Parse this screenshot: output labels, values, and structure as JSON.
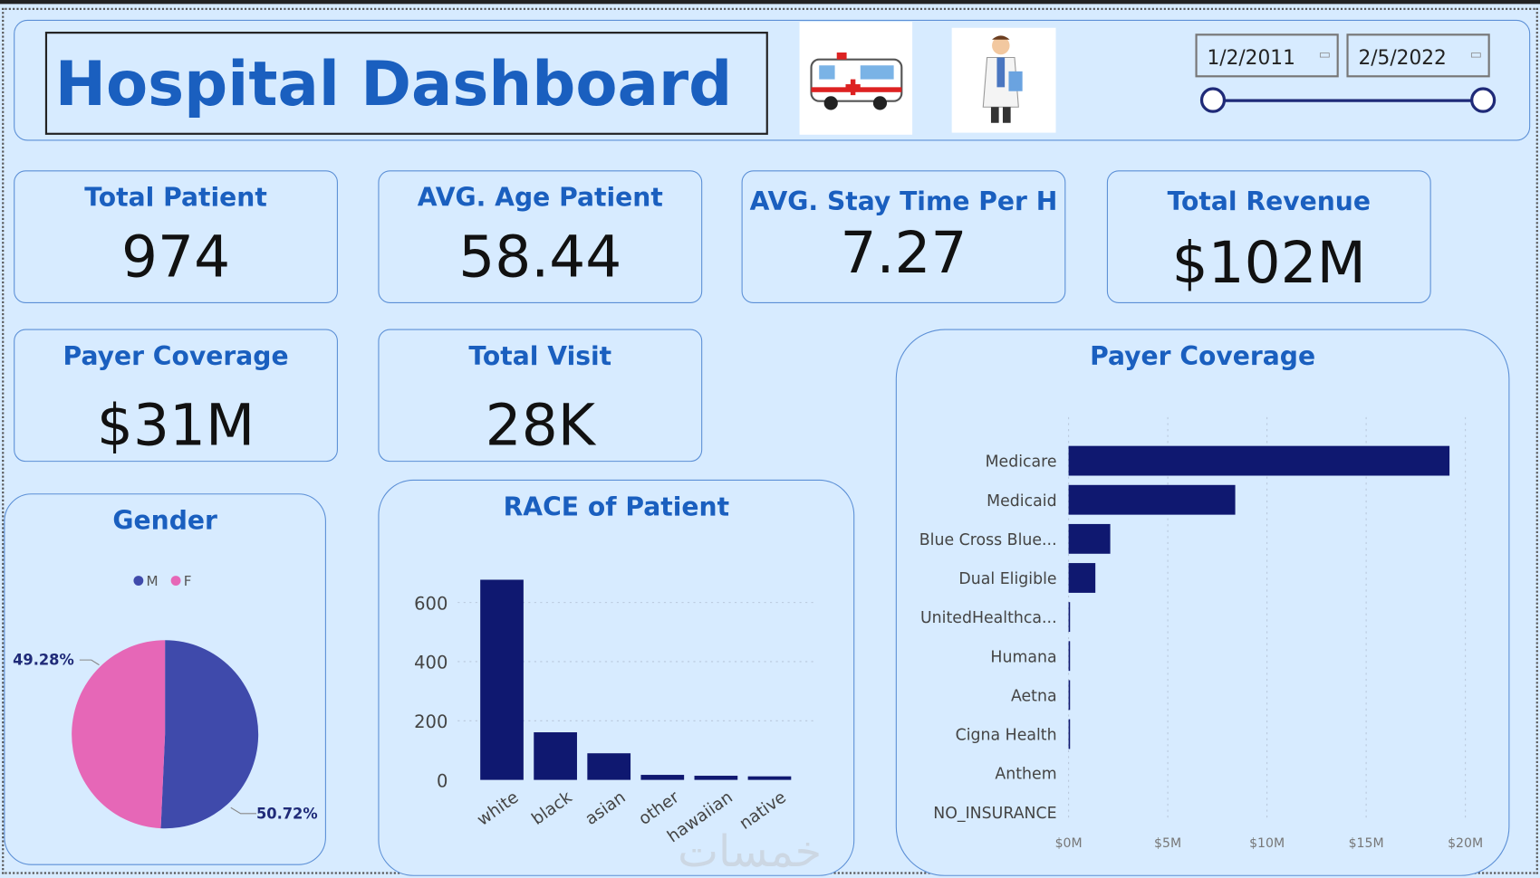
{
  "header": {
    "title": "Hospital Dashboard",
    "ambulance_icon": "ambulance-image",
    "doctor_icon": "doctor-image"
  },
  "date_filter": {
    "start": "1/2/2011",
    "end": "2/5/2022",
    "range_fraction": [
      0,
      1
    ]
  },
  "kpis": [
    {
      "label": "Total Patient",
      "value": "974"
    },
    {
      "label": "AVG. Age Patient",
      "value": "58.44"
    },
    {
      "label": "AVG. Stay Time Per H",
      "value": "7.27"
    },
    {
      "label": "Total Revenue",
      "value": "$102M"
    },
    {
      "label": "Payer Coverage",
      "value": "$31M"
    },
    {
      "label": "Total Visit",
      "value": "28K"
    }
  ],
  "colors": {
    "accent": "#1a5fbf",
    "bar": "#0f1870",
    "male": "#3f4aab",
    "female": "#e667b7",
    "bg": "#d7ebff"
  },
  "chart_data": [
    {
      "type": "pie",
      "title": "Gender",
      "legend": [
        "M",
        "F"
      ],
      "legend_position": "top",
      "values": [
        50.72,
        49.28
      ],
      "labels": [
        "50.72%",
        "49.28%"
      ]
    },
    {
      "type": "bar",
      "title": "RACE of Patient",
      "categories": [
        "white",
        "black",
        "asian",
        "other",
        "hawaiian",
        "native"
      ],
      "values": [
        677,
        161,
        90,
        17,
        14,
        12
      ],
      "yticks": [
        "0",
        "200",
        "400",
        "600"
      ],
      "ylim": [
        0,
        700
      ],
      "grid": true
    },
    {
      "type": "bar",
      "orientation": "horizontal",
      "title": "Payer Coverage",
      "categories": [
        "Medicare",
        "Medicaid",
        "Blue Cross Blue...",
        "Dual Eligible",
        "UnitedHealthca...",
        "Humana",
        "Aetna",
        "Cigna Health",
        "Anthem",
        "NO_INSURANCE"
      ],
      "values": [
        19.2,
        8.4,
        2.1,
        1.35,
        0.05,
        0.05,
        0.05,
        0.05,
        0,
        0
      ],
      "xticks": [
        "$0M",
        "$5M",
        "$10M",
        "$15M",
        "$20M"
      ],
      "xlim": [
        0,
        20
      ],
      "unit": "$M",
      "grid": true
    }
  ],
  "watermark": "خمسات"
}
